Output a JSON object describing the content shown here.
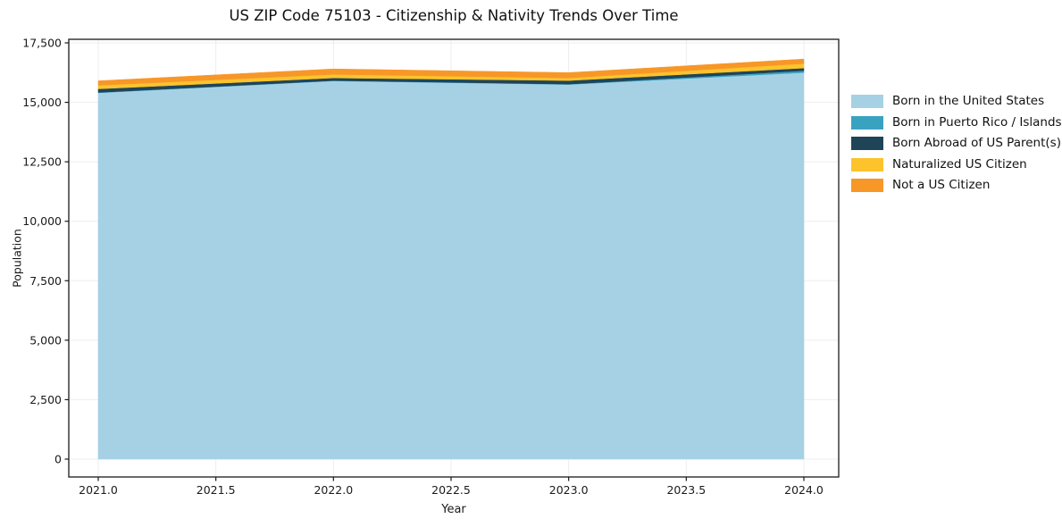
{
  "chart_data": {
    "type": "area",
    "stacked": true,
    "title": "US ZIP Code 75103 - Citizenship & Nativity Trends Over Time",
    "xlabel": "Year",
    "ylabel": "Population",
    "x": [
      2021,
      2022,
      2023,
      2024
    ],
    "series": [
      {
        "name": "Born in the United States",
        "color": "#a6d1e5",
        "values": [
          15400,
          15900,
          15750,
          16250
        ]
      },
      {
        "name": "Born in Puerto Rico / Islands",
        "color": "#3aa2c1",
        "values": [
          15,
          15,
          15,
          80
        ]
      },
      {
        "name": "Born Abroad of US Parent(s)",
        "color": "#1f4458",
        "values": [
          150,
          110,
          150,
          110
        ]
      },
      {
        "name": "Naturalized US Citizen",
        "color": "#fcc32d",
        "values": [
          150,
          150,
          110,
          190
        ]
      },
      {
        "name": "Not a US Citizen",
        "color": "#f79728",
        "values": [
          190,
          230,
          225,
          190
        ]
      }
    ],
    "xlim": [
      2020.87,
      2024.15
    ],
    "ylim": [
      0,
      17500
    ],
    "xtick_values": [
      2021.0,
      2021.5,
      2022.0,
      2022.5,
      2023.0,
      2023.5,
      2024.0
    ],
    "xtick_labels": [
      "2021.0",
      "2021.5",
      "2022.0",
      "2022.5",
      "2023.0",
      "2023.5",
      "2024.0"
    ],
    "ytick_values": [
      0,
      2500,
      5000,
      7500,
      10000,
      12500,
      15000,
      17500
    ],
    "ytick_labels": [
      "0",
      "2,500",
      "5,000",
      "7,500",
      "10,000",
      "12,500",
      "15,000",
      "17,500"
    ],
    "grid": true,
    "legend_position": "right-outside",
    "colors": {
      "gridline": "#ededed",
      "spine": "#1a1a1a",
      "tick_text": "#1a1a1a",
      "background": "#ffffff"
    }
  }
}
